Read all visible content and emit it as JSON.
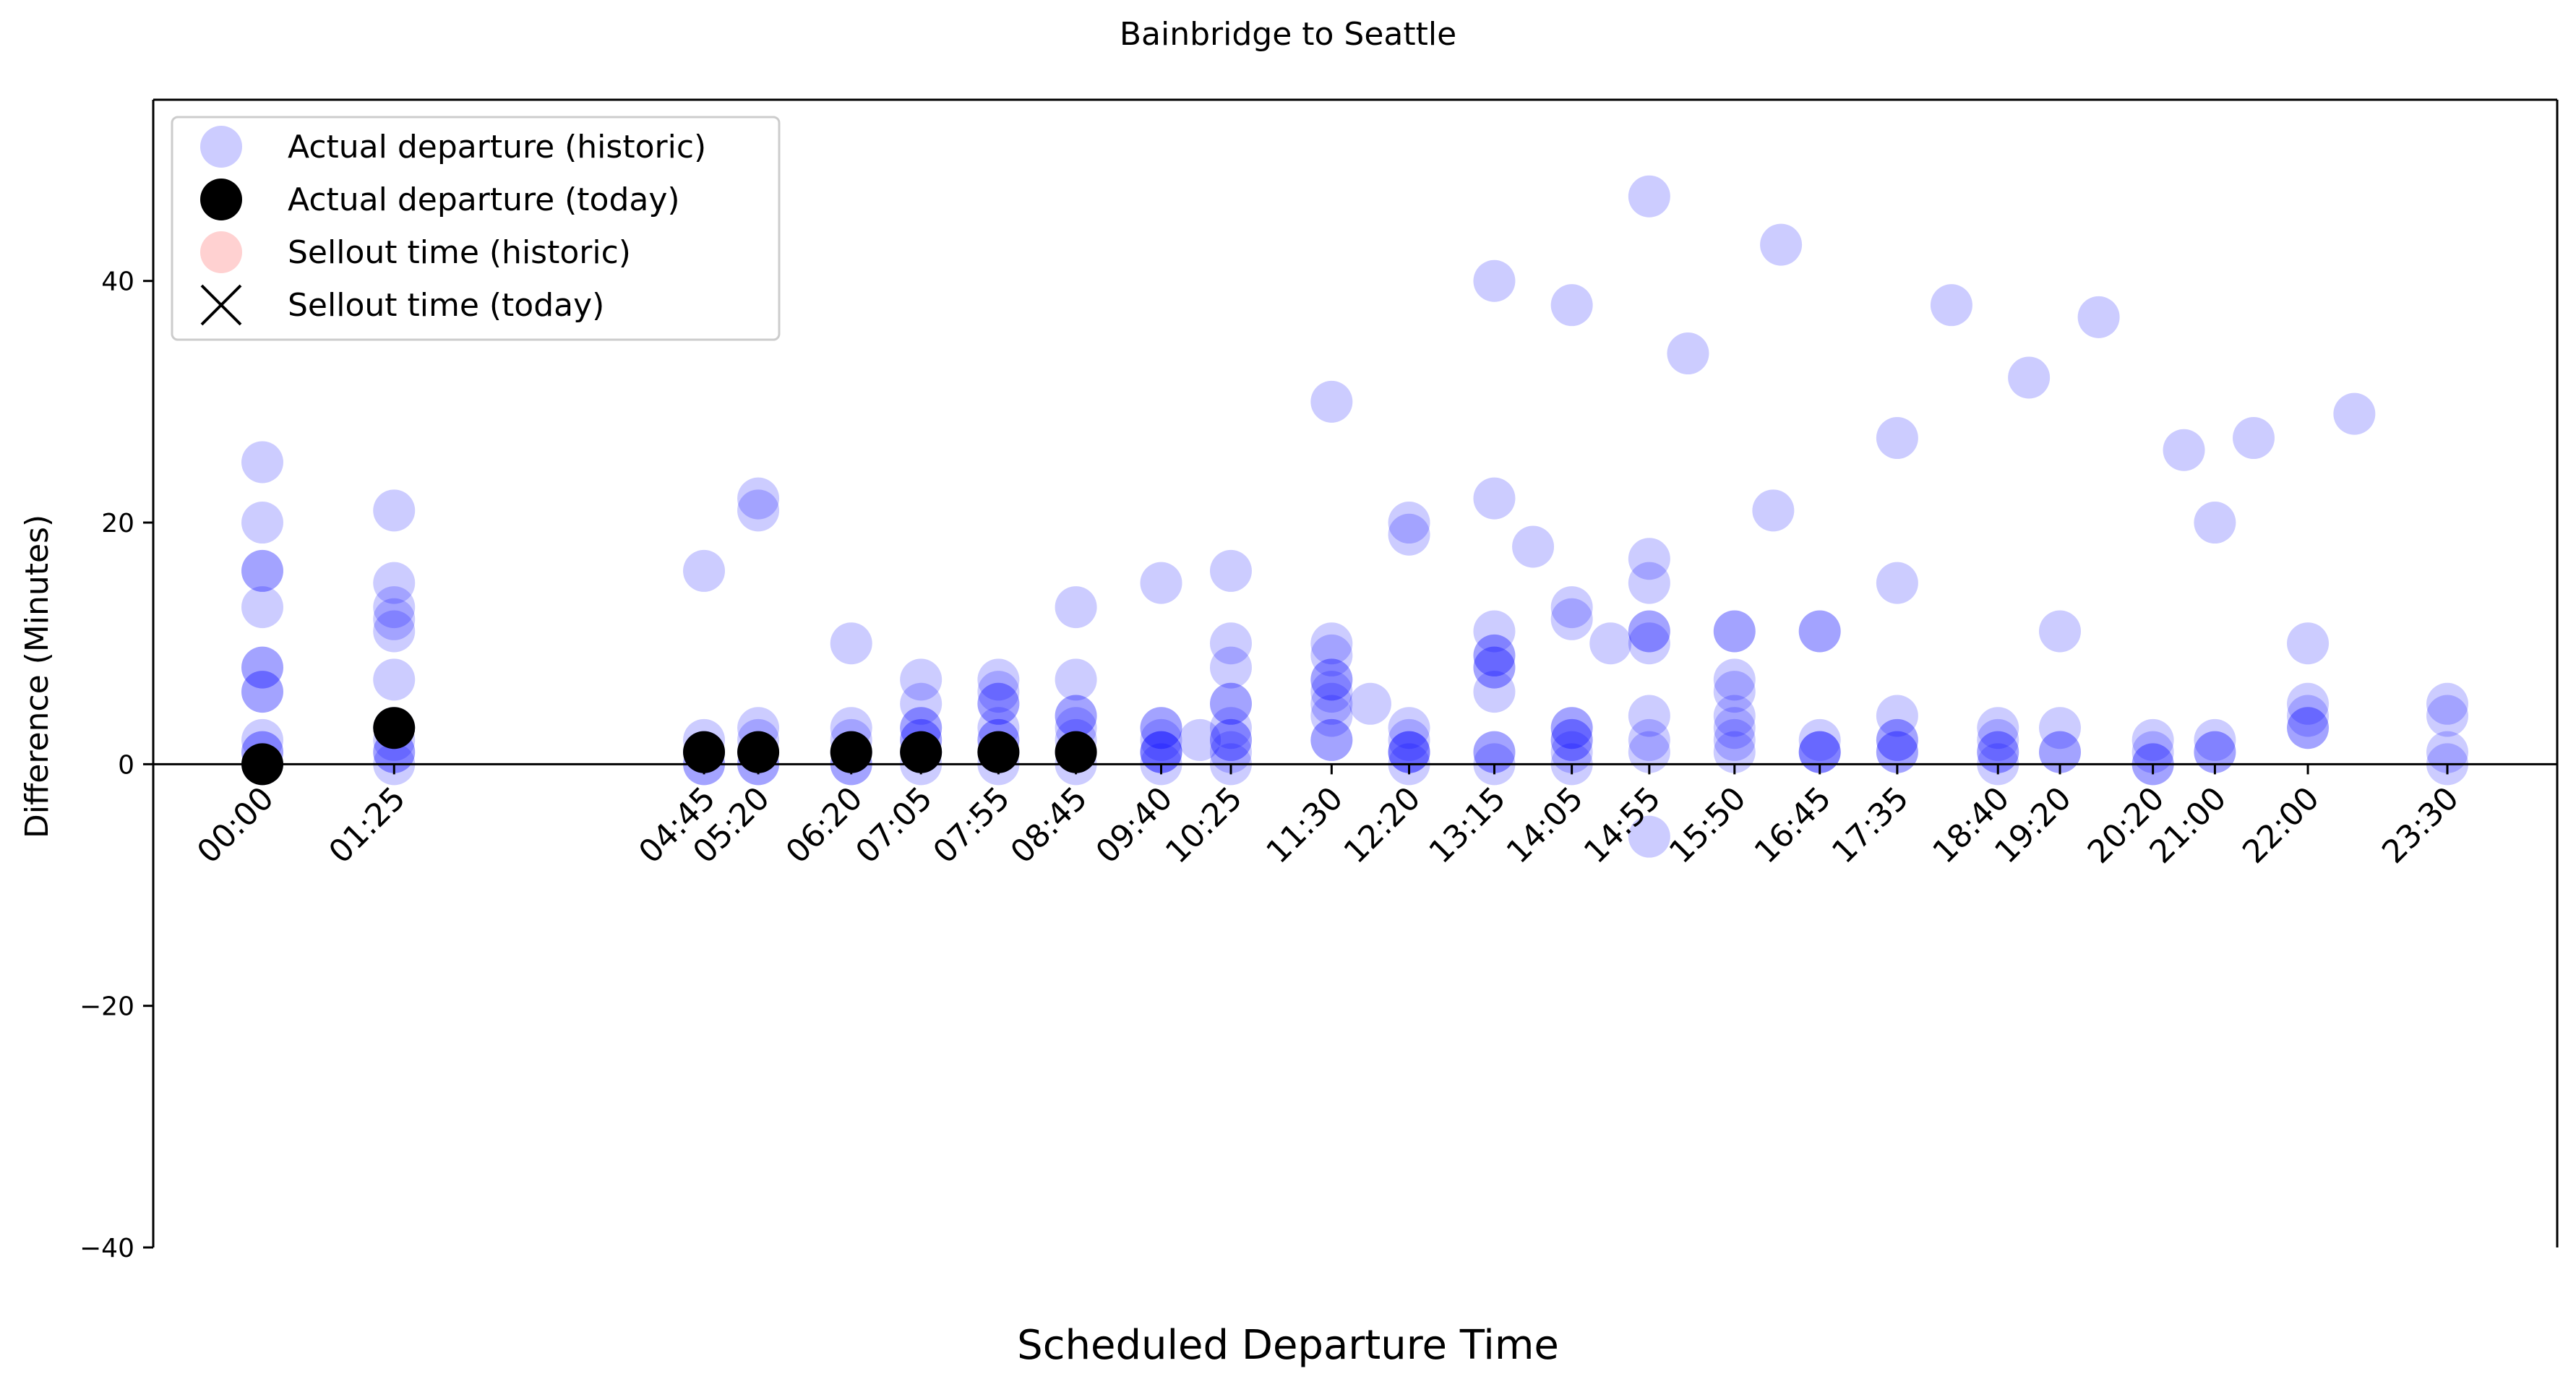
{
  "chart_data": {
    "type": "scatter",
    "title": "Bainbridge to Seattle",
    "xlabel": "Scheduled Departure Time",
    "ylabel": "Difference (Minutes)",
    "ylim": [
      -40,
      55
    ],
    "y_ticks": [
      -40,
      -20,
      0,
      20,
      40
    ],
    "x_ticks": [
      "00:00",
      "01:25",
      "04:45",
      "05:20",
      "06:20",
      "07:05",
      "07:55",
      "08:45",
      "09:40",
      "10:25",
      "11:30",
      "12:20",
      "13:15",
      "14:05",
      "14:55",
      "15:50",
      "16:45",
      "17:35",
      "18:40",
      "19:20",
      "20:20",
      "21:00",
      "22:00",
      "23:30"
    ],
    "grid": false,
    "legend_position": "upper-left",
    "legend": [
      "Actual departure (historic)",
      "Actual departure (today)",
      "Sellout time (historic)",
      "Sellout time (today)"
    ],
    "colors": {
      "historic": "#0000ff",
      "today": "#000000",
      "sellout_historic": "#ff9999",
      "sellout_today": "#000000"
    },
    "series": [
      {
        "name": "Actual departure (historic)",
        "points": [
          {
            "x": "00:00",
            "y": [
              25,
              20,
              16,
              16,
              13,
              8,
              8,
              6,
              6,
              2,
              1,
              1,
              0
            ]
          },
          {
            "x": "01:25",
            "y": [
              21,
              15,
              13,
              12,
              11,
              7,
              3,
              2,
              1,
              1,
              0
            ]
          },
          {
            "x": "04:45",
            "y": [
              16,
              2,
              1,
              1,
              1,
              0,
              0
            ]
          },
          {
            "x": "05:20",
            "y": [
              22,
              21,
              3,
              2,
              1,
              1,
              0,
              0
            ]
          },
          {
            "x": "06:20",
            "y": [
              10,
              3,
              2,
              1,
              1,
              0,
              0
            ]
          },
          {
            "x": "07:05",
            "y": [
              7,
              5,
              3,
              3,
              2,
              2,
              1,
              1,
              0
            ]
          },
          {
            "x": "07:55",
            "y": [
              7,
              6,
              5,
              5,
              3,
              2,
              2,
              1,
              1,
              0
            ]
          },
          {
            "x": "08:45",
            "y": [
              13,
              7,
              4,
              4,
              3,
              2,
              1,
              1,
              0
            ]
          },
          {
            "x": "09:40",
            "y": [
              15,
              3,
              3,
              2,
              1,
              1,
              1,
              0
            ]
          },
          {
            "x": "10:05",
            "y": [
              2
            ]
          },
          {
            "x": "10:25",
            "y": [
              16,
              10,
              8,
              5,
              5,
              3,
              2,
              2,
              1,
              0
            ]
          },
          {
            "x": "11:30",
            "y": [
              30,
              10,
              9,
              7,
              7,
              6,
              5,
              4,
              2,
              2
            ]
          },
          {
            "x": "11:55",
            "y": [
              5
            ]
          },
          {
            "x": "12:20",
            "y": [
              20,
              19,
              3,
              2,
              1,
              1,
              1,
              0
            ]
          },
          {
            "x": "13:15",
            "y": [
              40,
              22,
              11,
              9,
              9,
              8,
              8,
              6,
              1,
              1,
              0
            ]
          },
          {
            "x": "13:40",
            "y": [
              18
            ]
          },
          {
            "x": "14:05",
            "y": [
              38,
              13,
              12,
              3,
              3,
              2,
              2,
              1,
              0
            ]
          },
          {
            "x": "14:30",
            "y": [
              10
            ]
          },
          {
            "x": "14:55",
            "y": [
              47,
              17,
              15,
              11,
              11,
              10,
              4,
              2,
              1,
              -6
            ]
          },
          {
            "x": "15:20",
            "y": [
              34
            ]
          },
          {
            "x": "15:50",
            "y": [
              11,
              11,
              7,
              6,
              4,
              3,
              2,
              1
            ]
          },
          {
            "x": "16:15",
            "y": [
              21
            ]
          },
          {
            "x": "16:20",
            "y": [
              43
            ]
          },
          {
            "x": "16:45",
            "y": [
              11,
              11,
              2,
              1,
              1,
              1
            ]
          },
          {
            "x": "17:35",
            "y": [
              27,
              15,
              4,
              2,
              2,
              1,
              1
            ]
          },
          {
            "x": "18:10",
            "y": [
              38
            ]
          },
          {
            "x": "18:40",
            "y": [
              3,
              2,
              1,
              1,
              0
            ]
          },
          {
            "x": "19:00",
            "y": [
              32
            ]
          },
          {
            "x": "19:20",
            "y": [
              11,
              3,
              1,
              1
            ]
          },
          {
            "x": "19:45",
            "y": [
              37
            ]
          },
          {
            "x": "20:20",
            "y": [
              2,
              1,
              0,
              0
            ]
          },
          {
            "x": "20:40",
            "y": [
              26
            ]
          },
          {
            "x": "21:00",
            "y": [
              20,
              2,
              1,
              1
            ]
          },
          {
            "x": "21:25",
            "y": [
              27
            ]
          },
          {
            "x": "22:00",
            "y": [
              10,
              5,
              4,
              3,
              3
            ]
          },
          {
            "x": "22:30",
            "y": [
              29
            ]
          },
          {
            "x": "23:30",
            "y": [
              5,
              4,
              1,
              0
            ]
          }
        ]
      },
      {
        "name": "Actual departure (today)",
        "points": [
          {
            "x": "00:00",
            "y": 0
          },
          {
            "x": "01:25",
            "y": 3
          },
          {
            "x": "04:45",
            "y": 1
          },
          {
            "x": "05:20",
            "y": 1
          },
          {
            "x": "06:20",
            "y": 1
          },
          {
            "x": "07:05",
            "y": 1
          },
          {
            "x": "07:55",
            "y": 1
          },
          {
            "x": "08:45",
            "y": 1
          }
        ]
      }
    ]
  }
}
